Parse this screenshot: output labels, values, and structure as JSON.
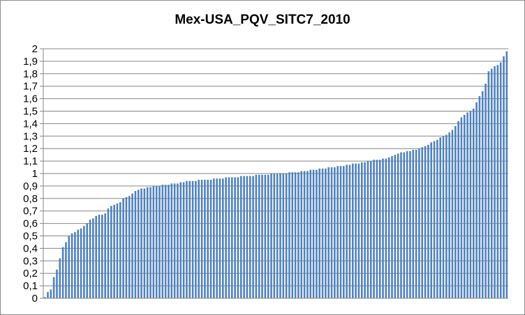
{
  "chart_data": {
    "type": "bar",
    "title": "Mex-USA_PQV_SITC7_2010",
    "xlabel": "",
    "ylabel": "",
    "ylim": [
      0,
      2
    ],
    "yticks": [
      "0",
      "0,1",
      "0,2",
      "0,3",
      "0,4",
      "0,5",
      "0,6",
      "0,7",
      "0,8",
      "0,9",
      "1",
      "1,1",
      "1,2",
      "1,3",
      "1,4",
      "1,5",
      "1,6",
      "1,7",
      "1,8",
      "1,9",
      "2"
    ],
    "grid": true,
    "legend": "none",
    "bar_color": "#4f81bd",
    "values": [
      0.01,
      0.05,
      0.07,
      0.17,
      0.23,
      0.32,
      0.41,
      0.45,
      0.5,
      0.52,
      0.53,
      0.55,
      0.56,
      0.58,
      0.6,
      0.63,
      0.64,
      0.66,
      0.67,
      0.67,
      0.68,
      0.72,
      0.74,
      0.75,
      0.76,
      0.77,
      0.8,
      0.81,
      0.82,
      0.84,
      0.86,
      0.87,
      0.88,
      0.88,
      0.89,
      0.89,
      0.9,
      0.9,
      0.9,
      0.91,
      0.91,
      0.91,
      0.92,
      0.92,
      0.92,
      0.93,
      0.93,
      0.94,
      0.94,
      0.94,
      0.94,
      0.95,
      0.95,
      0.95,
      0.95,
      0.95,
      0.96,
      0.96,
      0.96,
      0.96,
      0.97,
      0.97,
      0.97,
      0.97,
      0.97,
      0.98,
      0.98,
      0.98,
      0.98,
      0.98,
      0.99,
      0.99,
      0.99,
      0.99,
      0.99,
      1.0,
      1.0,
      1.0,
      1.0,
      1.0,
      1.0,
      1.01,
      1.01,
      1.01,
      1.01,
      1.02,
      1.02,
      1.02,
      1.03,
      1.03,
      1.03,
      1.04,
      1.04,
      1.04,
      1.05,
      1.05,
      1.05,
      1.06,
      1.06,
      1.06,
      1.07,
      1.07,
      1.08,
      1.08,
      1.08,
      1.09,
      1.09,
      1.1,
      1.1,
      1.11,
      1.11,
      1.11,
      1.12,
      1.12,
      1.13,
      1.14,
      1.15,
      1.16,
      1.17,
      1.17,
      1.18,
      1.18,
      1.19,
      1.19,
      1.2,
      1.21,
      1.22,
      1.23,
      1.25,
      1.26,
      1.27,
      1.29,
      1.3,
      1.31,
      1.33,
      1.35,
      1.38,
      1.42,
      1.45,
      1.47,
      1.49,
      1.5,
      1.52,
      1.57,
      1.62,
      1.66,
      1.72,
      1.82,
      1.84,
      1.86,
      1.87,
      1.89,
      1.94,
      1.98
    ]
  }
}
